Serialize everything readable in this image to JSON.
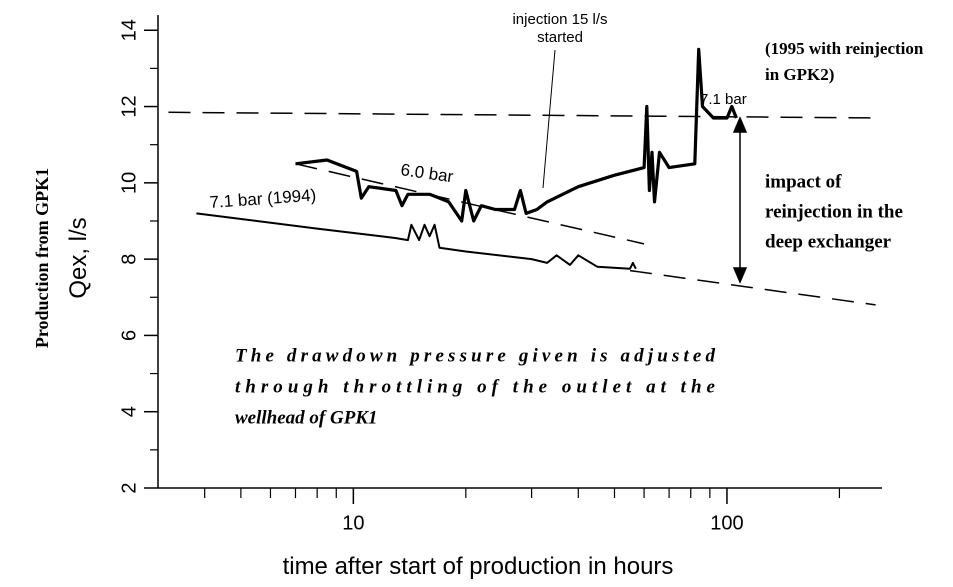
{
  "chart_data": {
    "type": "line",
    "x_label": "time after start of production in hours",
    "y_label": "Qex, l/s",
    "y_label_outer": "Production from GPK1",
    "xscale": "log",
    "xlim": [
      3,
      260
    ],
    "xticks": [
      10,
      100
    ],
    "xminor": [
      4,
      5,
      6,
      7,
      8,
      9,
      20,
      30,
      40,
      50,
      60,
      70,
      80,
      90,
      200
    ],
    "ylim": [
      2,
      14.4
    ],
    "yticks": [
      2,
      4,
      6,
      8,
      10,
      12,
      14
    ],
    "yminor": [
      3,
      5,
      7,
      9,
      11,
      13
    ],
    "series": [
      {
        "name": "6.0 bar",
        "color": "#000000",
        "width": 3.2,
        "x": [
          7,
          8.5,
          10.2,
          10.5,
          11,
          13,
          13.5,
          14,
          16,
          17,
          18,
          19.5,
          20,
          21,
          22,
          24,
          26,
          27,
          28,
          29,
          31,
          33,
          40,
          50,
          60,
          61,
          62,
          63,
          64,
          66,
          70,
          82,
          84,
          86,
          92,
          100,
          103,
          106
        ],
        "values": [
          10.5,
          10.6,
          10.3,
          9.6,
          9.9,
          9.8,
          9.4,
          9.7,
          9.7,
          9.6,
          9.5,
          9.0,
          9.8,
          9.0,
          9.4,
          9.3,
          9.3,
          9.3,
          9.8,
          9.2,
          9.3,
          9.5,
          9.9,
          10.2,
          10.4,
          12.0,
          9.8,
          10.8,
          9.5,
          10.8,
          10.4,
          10.5,
          13.5,
          12.0,
          11.7,
          11.7,
          12.0,
          11.7
        ]
      },
      {
        "name": "7.1 bar (1994)",
        "color": "#000000",
        "width": 2,
        "x": [
          3.8,
          8,
          13,
          14,
          14.3,
          15,
          15.5,
          16,
          16.5,
          17,
          20,
          30,
          33,
          35,
          38,
          40,
          45,
          55,
          56,
          57
        ],
        "values": [
          9.2,
          8.8,
          8.55,
          8.5,
          8.9,
          8.5,
          8.9,
          8.6,
          8.9,
          8.3,
          8.2,
          8.0,
          7.9,
          8.1,
          7.85,
          8.1,
          7.8,
          7.75,
          7.9,
          7.75
        ]
      }
    ],
    "reference_lines": [
      {
        "x": [
          3.2,
          260
        ],
        "values": [
          11.85,
          11.7
        ]
      },
      {
        "x": [
          7,
          60
        ],
        "values": [
          10.5,
          8.4
        ]
      },
      {
        "x": [
          55,
          250
        ],
        "values": [
          7.7,
          6.8
        ]
      }
    ],
    "annotations": [
      {
        "lines": [
          "injection 15 l/s",
          "started"
        ]
      },
      {
        "lines": [
          "(1995 with reinjection",
          "in GPK2)"
        ]
      },
      {
        "lines": [
          "7.1 bar"
        ]
      },
      {
        "lines": [
          "impact of",
          "reinjection in the",
          "deep exchanger"
        ]
      },
      {
        "lines": [
          "The drawdown pressure given is adjusted",
          "through throttling of the outlet at the",
          "wellhead of GPK1"
        ]
      }
    ]
  }
}
